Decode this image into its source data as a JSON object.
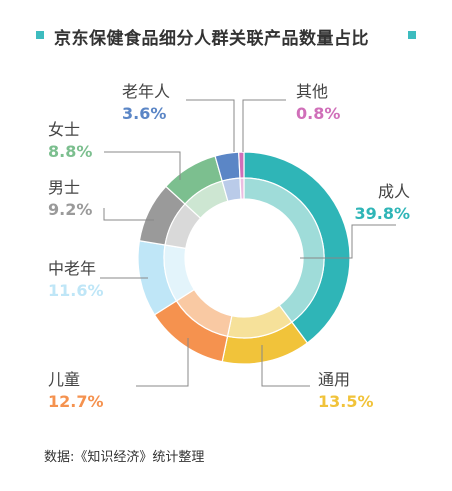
{
  "title": "京东保健食品细分人群关联产品数量占比",
  "source": "数据:《知识经济》统计整理",
  "accent_color": "#3dbcbf",
  "chart_data": {
    "type": "pie",
    "title": "京东保健食品细分人群关联产品数量占比",
    "donut": true,
    "slices": [
      {
        "label": "成人",
        "value": 39.8,
        "display": "39.8%",
        "color": "#2fb5b7",
        "inner_color": "#9fdcd9"
      },
      {
        "label": "通用",
        "value": 13.5,
        "display": "13.5%",
        "color": "#f1c33a",
        "inner_color": "#f6e19a"
      },
      {
        "label": "儿童",
        "value": 12.7,
        "display": "12.7%",
        "color": "#f5924f",
        "inner_color": "#f9c9a3"
      },
      {
        "label": "中老年",
        "value": 11.6,
        "display": "11.6%",
        "color": "#bfe6f7",
        "inner_color": "#e3f4fb"
      },
      {
        "label": "男士",
        "value": 9.2,
        "display": "9.2%",
        "color": "#9a9a9a",
        "inner_color": "#d9d9d9"
      },
      {
        "label": "女士",
        "value": 8.8,
        "display": "8.8%",
        "color": "#7cbf8f",
        "inner_color": "#cde6d2"
      },
      {
        "label": "老年人",
        "value": 3.6,
        "display": "3.6%",
        "color": "#5b86c6",
        "inner_color": "#bacbe9"
      },
      {
        "label": "其他",
        "value": 0.8,
        "display": "0.8%",
        "color": "#d06fb9",
        "inner_color": "#ebbde1"
      }
    ]
  }
}
